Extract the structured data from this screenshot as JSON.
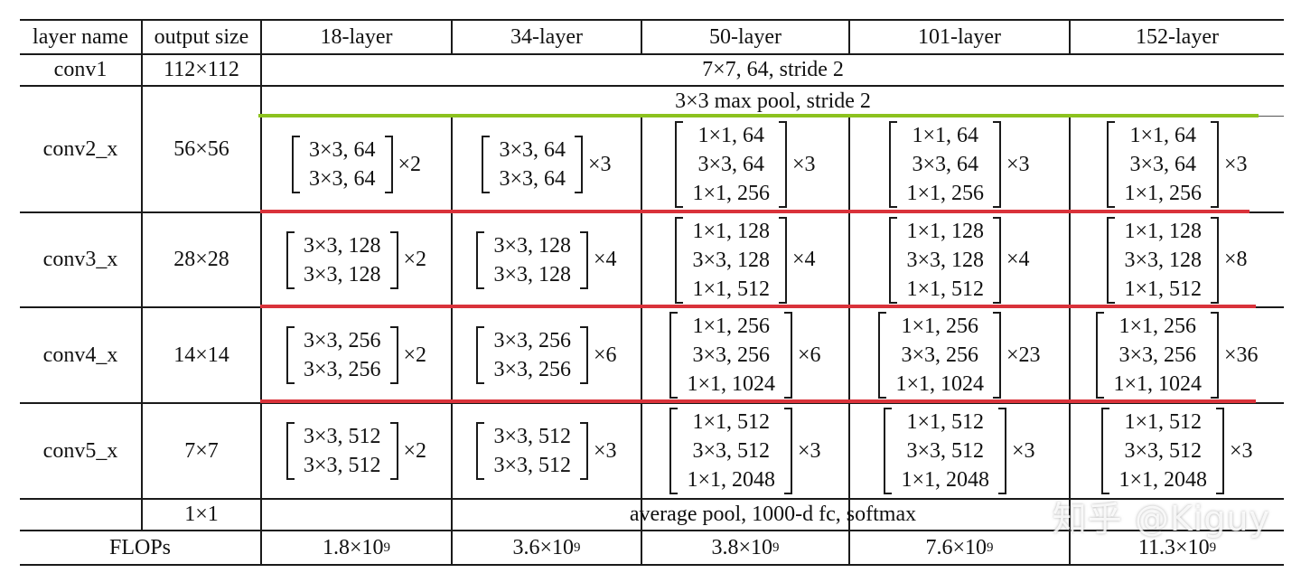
{
  "header": {
    "layer_name": "layer name",
    "output_size": "output size",
    "col18": "18-layer",
    "col34": "34-layer",
    "col50": "50-layer",
    "col101": "101-layer",
    "col152": "152-layer"
  },
  "conv1": {
    "name": "conv1",
    "size": "112×112",
    "spec": "7×7, 64, stride 2"
  },
  "pool": {
    "spec": "3×3 max pool, stride 2"
  },
  "conv2": {
    "name": "conv2_x",
    "size": "56×56",
    "b18": {
      "r1": "3×3, 64",
      "r2": "3×3, 64",
      "mult": "×2"
    },
    "b34": {
      "r1": "3×3, 64",
      "r2": "3×3, 64",
      "mult": "×3"
    },
    "b50": {
      "r1": "1×1, 64",
      "r2": "3×3, 64",
      "r3": "1×1, 256",
      "mult": "×3"
    },
    "b101": {
      "r1": "1×1, 64",
      "r2": "3×3, 64",
      "r3": "1×1, 256",
      "mult": "×3"
    },
    "b152": {
      "r1": "1×1, 64",
      "r2": "3×3, 64",
      "r3": "1×1, 256",
      "mult": "×3"
    }
  },
  "conv3": {
    "name": "conv3_x",
    "size": "28×28",
    "b18": {
      "r1": "3×3, 128",
      "r2": "3×3, 128",
      "mult": "×2"
    },
    "b34": {
      "r1": "3×3, 128",
      "r2": "3×3, 128",
      "mult": "×4"
    },
    "b50": {
      "r1": "1×1, 128",
      "r2": "3×3, 128",
      "r3": "1×1, 512",
      "mult": "×4"
    },
    "b101": {
      "r1": "1×1, 128",
      "r2": "3×3, 128",
      "r3": "1×1, 512",
      "mult": "×4"
    },
    "b152": {
      "r1": "1×1, 128",
      "r2": "3×3, 128",
      "r3": "1×1, 512",
      "mult": "×8"
    }
  },
  "conv4": {
    "name": "conv4_x",
    "size": "14×14",
    "b18": {
      "r1": "3×3, 256",
      "r2": "3×3, 256",
      "mult": "×2"
    },
    "b34": {
      "r1": "3×3, 256",
      "r2": "3×3, 256",
      "mult": "×6"
    },
    "b50": {
      "r1": "1×1, 256",
      "r2": "3×3, 256",
      "r3": "1×1, 1024",
      "mult": "×6"
    },
    "b101": {
      "r1": "1×1, 256",
      "r2": "3×3, 256",
      "r3": "1×1, 1024",
      "mult": "×23"
    },
    "b152": {
      "r1": "1×1, 256",
      "r2": "3×3, 256",
      "r3": "1×1, 1024",
      "mult": "×36"
    }
  },
  "conv5": {
    "name": "conv5_x",
    "size": "7×7",
    "b18": {
      "r1": "3×3, 512",
      "r2": "3×3, 512",
      "mult": "×2"
    },
    "b34": {
      "r1": "3×3, 512",
      "r2": "3×3, 512",
      "mult": "×3"
    },
    "b50": {
      "r1": "1×1, 512",
      "r2": "3×3, 512",
      "r3": "1×1, 2048",
      "mult": "×3"
    },
    "b101": {
      "r1": "1×1, 512",
      "r2": "3×3, 512",
      "r3": "1×1, 2048",
      "mult": "×3"
    },
    "b152": {
      "r1": "1×1, 512",
      "r2": "3×3, 512",
      "r3": "1×1, 2048",
      "mult": "×3"
    }
  },
  "final": {
    "size": "1×1",
    "spec": "average pool, 1000-d fc, softmax"
  },
  "flops": {
    "label": "FLOPs",
    "f18": "1.8×10",
    "e18": "9",
    "f34": "3.6×10",
    "e34": "9",
    "f50": "3.8×10",
    "e50": "9",
    "f101": "7.6×10",
    "e101": "9",
    "f152": "11.3×10",
    "e152": "9"
  },
  "watermark": "知乎 @Kiguy",
  "colors": {
    "green_highlight": "#8cc21f",
    "red_highlight": "#d9323a",
    "rule": "#1a1a1a"
  }
}
